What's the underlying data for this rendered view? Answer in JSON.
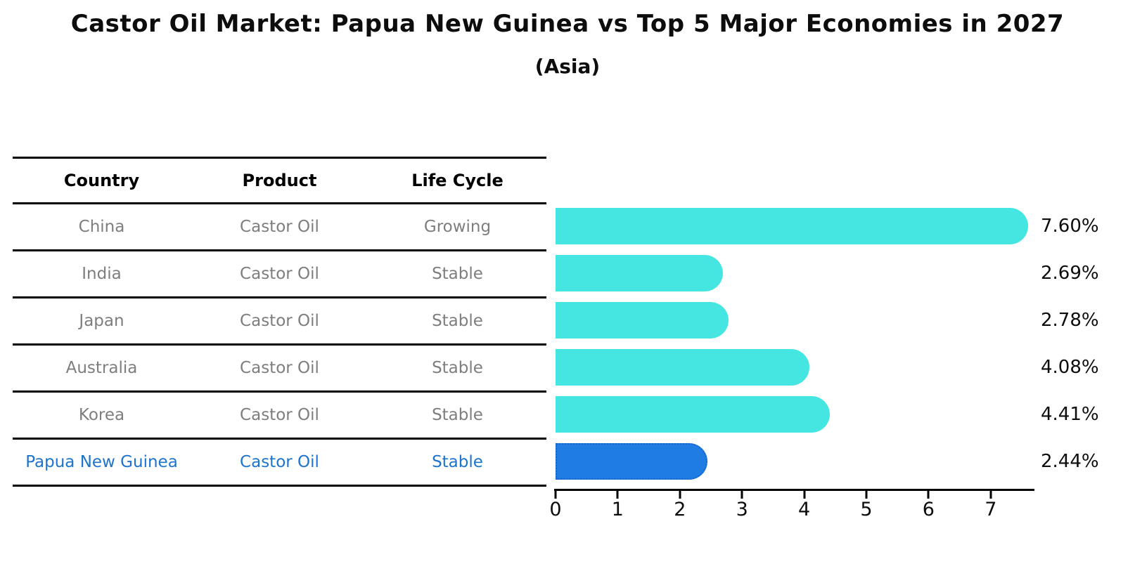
{
  "title": "Castor Oil Market: Papua New Guinea vs Top 5 Major Economies in 2027",
  "subtitle": "(Asia)",
  "table": {
    "headers": [
      "Country",
      "Product",
      "Life Cycle"
    ],
    "rows": [
      {
        "country": "China",
        "product": "Castor Oil",
        "life_cycle": "Growing",
        "highlight": false
      },
      {
        "country": "India",
        "product": "Castor Oil",
        "life_cycle": "Stable",
        "highlight": false
      },
      {
        "country": "Japan",
        "product": "Castor Oil",
        "life_cycle": "Stable",
        "highlight": false
      },
      {
        "country": "Australia",
        "product": "Castor Oil",
        "life_cycle": "Stable",
        "highlight": false
      },
      {
        "country": "Korea",
        "product": "Castor Oil",
        "life_cycle": "Stable",
        "highlight": false
      },
      {
        "country": "Papua New Guinea",
        "product": "Castor Oil",
        "life_cycle": "Stable",
        "highlight": true
      }
    ]
  },
  "chart_data": {
    "type": "bar",
    "orientation": "horizontal",
    "title": "Castor Oil Market: Papua New Guinea vs Top 5 Major Economies in 2027 (Asia)",
    "categories": [
      "China",
      "India",
      "Japan",
      "Australia",
      "Korea",
      "Papua New Guinea"
    ],
    "values": [
      7.6,
      2.69,
      2.78,
      4.08,
      4.41,
      2.44
    ],
    "value_labels": [
      "7.60%",
      "2.69%",
      "2.78%",
      "4.08%",
      "4.41%",
      "2.44%"
    ],
    "xticks": [
      0,
      1,
      2,
      3,
      4,
      5,
      6,
      7
    ],
    "xlim": [
      0,
      7.7
    ],
    "xlabel": "",
    "ylabel": "",
    "grid": false,
    "legend": false,
    "highlight_category": "Papua New Guinea"
  },
  "colors": {
    "bar_default": "#45e6e2",
    "bar_highlight": "#1e7ce2",
    "bar_highlight_border": "#1866cc",
    "highlight_text": "#1d74ce",
    "row_text": "#7e7e7e",
    "header_text": "#000000",
    "axis": "#000000",
    "background": "#ffffff"
  }
}
